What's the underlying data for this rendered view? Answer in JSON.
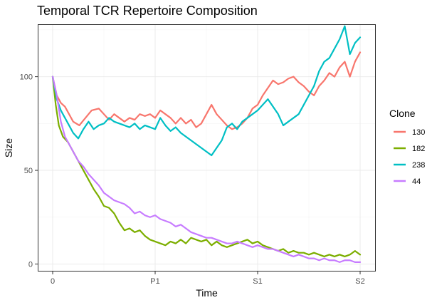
{
  "chart_data": {
    "type": "line",
    "title": "Temporal TCR Repertoire Composition",
    "xlabel": "Time",
    "ylabel": "Size",
    "x_ticks": [
      "0",
      "P1",
      "S1",
      "S2"
    ],
    "y_ticks": [
      0,
      50,
      100
    ],
    "ylim": [
      -4,
      128
    ],
    "grid": true,
    "legend": {
      "title": "Clone",
      "position": "right"
    },
    "series": [
      {
        "name": "130",
        "color": "#F8766D",
        "points": [
          [
            0,
            100
          ],
          [
            0.04,
            90
          ],
          [
            0.08,
            86
          ],
          [
            0.12,
            84
          ],
          [
            0.16,
            80
          ],
          [
            0.2,
            76
          ],
          [
            0.26,
            74
          ],
          [
            0.32,
            78
          ],
          [
            0.38,
            82
          ],
          [
            0.45,
            83
          ],
          [
            0.5,
            80
          ],
          [
            0.55,
            77
          ],
          [
            0.6,
            80
          ],
          [
            0.65,
            78
          ],
          [
            0.7,
            76
          ],
          [
            0.75,
            78
          ],
          [
            0.8,
            77
          ],
          [
            0.85,
            80
          ],
          [
            0.9,
            79
          ],
          [
            0.95,
            80
          ],
          [
            1.0,
            78
          ],
          [
            1.05,
            82
          ],
          [
            1.1,
            80
          ],
          [
            1.15,
            78
          ],
          [
            1.2,
            75
          ],
          [
            1.25,
            78
          ],
          [
            1.3,
            75
          ],
          [
            1.35,
            77
          ],
          [
            1.4,
            73
          ],
          [
            1.45,
            75
          ],
          [
            1.5,
            80
          ],
          [
            1.55,
            85
          ],
          [
            1.6,
            80
          ],
          [
            1.65,
            77
          ],
          [
            1.7,
            74
          ],
          [
            1.75,
            72
          ],
          [
            1.8,
            73
          ],
          [
            1.85,
            75
          ],
          [
            1.9,
            78
          ],
          [
            1.95,
            83
          ],
          [
            2.0,
            85
          ],
          [
            2.05,
            90
          ],
          [
            2.1,
            94
          ],
          [
            2.15,
            98
          ],
          [
            2.2,
            96
          ],
          [
            2.25,
            97
          ],
          [
            2.3,
            99
          ],
          [
            2.35,
            100
          ],
          [
            2.4,
            97
          ],
          [
            2.45,
            95
          ],
          [
            2.5,
            92
          ],
          [
            2.55,
            90
          ],
          [
            2.6,
            95
          ],
          [
            2.65,
            98
          ],
          [
            2.7,
            102
          ],
          [
            2.75,
            100
          ],
          [
            2.8,
            105
          ],
          [
            2.85,
            108
          ],
          [
            2.9,
            100
          ],
          [
            2.95,
            108
          ],
          [
            3.0,
            113
          ]
        ]
      },
      {
        "name": "182",
        "color": "#7CAE00",
        "points": [
          [
            0,
            100
          ],
          [
            0.03,
            85
          ],
          [
            0.06,
            74
          ],
          [
            0.1,
            68
          ],
          [
            0.15,
            65
          ],
          [
            0.2,
            60
          ],
          [
            0.25,
            55
          ],
          [
            0.3,
            50
          ],
          [
            0.35,
            45
          ],
          [
            0.4,
            40
          ],
          [
            0.45,
            36
          ],
          [
            0.5,
            31
          ],
          [
            0.55,
            30
          ],
          [
            0.6,
            27
          ],
          [
            0.65,
            22
          ],
          [
            0.7,
            18
          ],
          [
            0.75,
            19
          ],
          [
            0.8,
            17
          ],
          [
            0.85,
            18
          ],
          [
            0.9,
            15
          ],
          [
            0.95,
            13
          ],
          [
            1.0,
            12
          ],
          [
            1.05,
            11
          ],
          [
            1.1,
            10
          ],
          [
            1.15,
            12
          ],
          [
            1.2,
            11
          ],
          [
            1.25,
            13
          ],
          [
            1.3,
            11
          ],
          [
            1.35,
            14
          ],
          [
            1.4,
            13
          ],
          [
            1.45,
            12
          ],
          [
            1.5,
            13
          ],
          [
            1.55,
            10
          ],
          [
            1.6,
            12
          ],
          [
            1.65,
            10
          ],
          [
            1.7,
            9
          ],
          [
            1.75,
            10
          ],
          [
            1.8,
            11
          ],
          [
            1.85,
            12
          ],
          [
            1.9,
            13
          ],
          [
            1.95,
            11
          ],
          [
            2.0,
            12
          ],
          [
            2.05,
            10
          ],
          [
            2.1,
            9
          ],
          [
            2.15,
            8
          ],
          [
            2.2,
            7
          ],
          [
            2.25,
            8
          ],
          [
            2.3,
            6
          ],
          [
            2.35,
            7
          ],
          [
            2.4,
            6
          ],
          [
            2.45,
            6
          ],
          [
            2.5,
            5
          ],
          [
            2.55,
            6
          ],
          [
            2.6,
            5
          ],
          [
            2.65,
            4
          ],
          [
            2.7,
            5
          ],
          [
            2.75,
            4
          ],
          [
            2.8,
            5
          ],
          [
            2.85,
            4
          ],
          [
            2.9,
            5
          ],
          [
            2.95,
            7
          ],
          [
            3.0,
            5
          ]
        ]
      },
      {
        "name": "238",
        "color": "#00BFC4",
        "points": [
          [
            0,
            100
          ],
          [
            0.04,
            88
          ],
          [
            0.08,
            82
          ],
          [
            0.12,
            78
          ],
          [
            0.16,
            74
          ],
          [
            0.2,
            70
          ],
          [
            0.25,
            67
          ],
          [
            0.3,
            72
          ],
          [
            0.35,
            76
          ],
          [
            0.4,
            72
          ],
          [
            0.45,
            74
          ],
          [
            0.5,
            75
          ],
          [
            0.55,
            78
          ],
          [
            0.6,
            76
          ],
          [
            0.65,
            75
          ],
          [
            0.7,
            74
          ],
          [
            0.75,
            73
          ],
          [
            0.8,
            75
          ],
          [
            0.85,
            72
          ],
          [
            0.9,
            74
          ],
          [
            0.95,
            73
          ],
          [
            1.0,
            72
          ],
          [
            1.05,
            78
          ],
          [
            1.1,
            74
          ],
          [
            1.15,
            71
          ],
          [
            1.2,
            73
          ],
          [
            1.25,
            70
          ],
          [
            1.3,
            68
          ],
          [
            1.35,
            66
          ],
          [
            1.4,
            64
          ],
          [
            1.45,
            62
          ],
          [
            1.5,
            60
          ],
          [
            1.55,
            58
          ],
          [
            1.6,
            62
          ],
          [
            1.65,
            66
          ],
          [
            1.7,
            73
          ],
          [
            1.75,
            75
          ],
          [
            1.8,
            72
          ],
          [
            1.85,
            76
          ],
          [
            1.9,
            78
          ],
          [
            1.95,
            80
          ],
          [
            2.0,
            82
          ],
          [
            2.05,
            85
          ],
          [
            2.1,
            88
          ],
          [
            2.15,
            84
          ],
          [
            2.2,
            80
          ],
          [
            2.25,
            74
          ],
          [
            2.3,
            76
          ],
          [
            2.35,
            78
          ],
          [
            2.4,
            80
          ],
          [
            2.45,
            85
          ],
          [
            2.5,
            90
          ],
          [
            2.55,
            95
          ],
          [
            2.6,
            103
          ],
          [
            2.65,
            108
          ],
          [
            2.7,
            110
          ],
          [
            2.75,
            115
          ],
          [
            2.8,
            120
          ],
          [
            2.85,
            127
          ],
          [
            2.9,
            112
          ],
          [
            2.95,
            118
          ],
          [
            3.0,
            121
          ]
        ]
      },
      {
        "name": "44",
        "color": "#C77CFF",
        "points": [
          [
            0,
            100
          ],
          [
            0.04,
            90
          ],
          [
            0.08,
            76
          ],
          [
            0.12,
            68
          ],
          [
            0.16,
            64
          ],
          [
            0.2,
            60
          ],
          [
            0.25,
            55
          ],
          [
            0.3,
            52
          ],
          [
            0.35,
            48
          ],
          [
            0.4,
            45
          ],
          [
            0.45,
            42
          ],
          [
            0.5,
            38
          ],
          [
            0.55,
            36
          ],
          [
            0.6,
            34
          ],
          [
            0.65,
            33
          ],
          [
            0.7,
            32
          ],
          [
            0.75,
            30
          ],
          [
            0.8,
            27
          ],
          [
            0.85,
            28
          ],
          [
            0.9,
            26
          ],
          [
            0.95,
            25
          ],
          [
            1.0,
            26
          ],
          [
            1.05,
            24
          ],
          [
            1.1,
            23
          ],
          [
            1.15,
            22
          ],
          [
            1.2,
            20
          ],
          [
            1.25,
            21
          ],
          [
            1.3,
            19
          ],
          [
            1.35,
            17
          ],
          [
            1.4,
            16
          ],
          [
            1.45,
            15
          ],
          [
            1.5,
            14
          ],
          [
            1.55,
            14
          ],
          [
            1.6,
            13
          ],
          [
            1.65,
            12
          ],
          [
            1.7,
            11
          ],
          [
            1.75,
            11
          ],
          [
            1.8,
            12
          ],
          [
            1.85,
            11
          ],
          [
            1.9,
            10
          ],
          [
            1.95,
            9
          ],
          [
            2.0,
            10
          ],
          [
            2.05,
            9
          ],
          [
            2.1,
            8
          ],
          [
            2.15,
            8
          ],
          [
            2.2,
            7
          ],
          [
            2.25,
            6
          ],
          [
            2.3,
            5
          ],
          [
            2.35,
            4
          ],
          [
            2.4,
            5
          ],
          [
            2.45,
            4
          ],
          [
            2.5,
            3
          ],
          [
            2.55,
            3
          ],
          [
            2.6,
            2
          ],
          [
            2.65,
            3
          ],
          [
            2.7,
            2
          ],
          [
            2.75,
            2
          ],
          [
            2.8,
            1
          ],
          [
            2.85,
            2
          ],
          [
            2.9,
            2
          ],
          [
            2.95,
            1
          ],
          [
            3.0,
            1
          ]
        ]
      }
    ]
  }
}
